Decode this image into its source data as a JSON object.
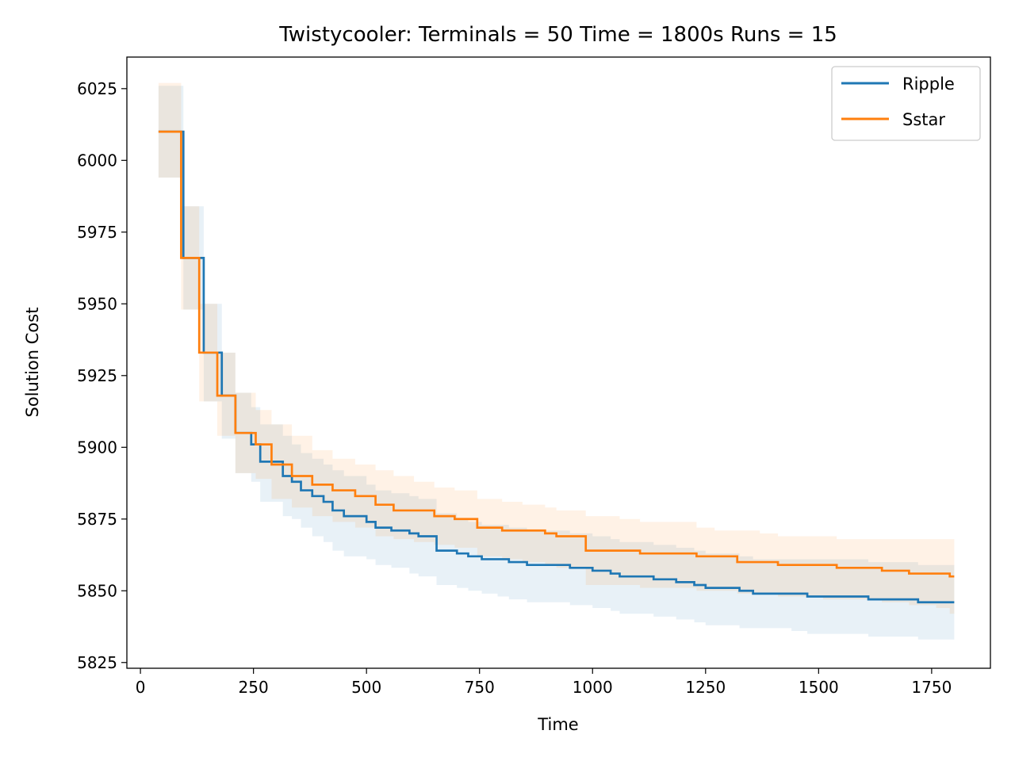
{
  "chart_data": {
    "type": "line",
    "title": "Twistycooler:  Terminals = 50  Time = 1800s  Runs = 15",
    "xlabel": "Time",
    "ylabel": "Solution Cost",
    "xlim": [
      -30,
      1880
    ],
    "ylim": [
      5823,
      6036
    ],
    "xticks": [
      0,
      250,
      500,
      750,
      1000,
      1250,
      1500,
      1750
    ],
    "yticks": [
      5825,
      5850,
      5875,
      5900,
      5925,
      5950,
      5975,
      6000,
      6025
    ],
    "legend_position": "top-right",
    "grid": false,
    "series": [
      {
        "name": "Ripple",
        "color": "#1f77b4",
        "step": "post",
        "shaded_band": true,
        "x": [
          40,
          85,
          95,
          120,
          140,
          150,
          180,
          185,
          210,
          230,
          245,
          265,
          290,
          315,
          335,
          355,
          380,
          405,
          425,
          450,
          475,
          500,
          520,
          555,
          595,
          615,
          635,
          655,
          675,
          700,
          725,
          755,
          790,
          815,
          855,
          910,
          950,
          1000,
          1040,
          1060,
          1105,
          1135,
          1165,
          1185,
          1225,
          1250,
          1295,
          1325,
          1355,
          1390,
          1440,
          1475,
          1520,
          1570,
          1610,
          1660,
          1690,
          1720,
          1760,
          1800
        ],
        "y": [
          6010,
          6010,
          5966,
          5966,
          5933,
          5933,
          5918,
          5918,
          5905,
          5905,
          5901,
          5895,
          5895,
          5890,
          5888,
          5885,
          5883,
          5881,
          5878,
          5876,
          5876,
          5874,
          5872,
          5871,
          5870,
          5869,
          5869,
          5864,
          5864,
          5863,
          5862,
          5861,
          5861,
          5860,
          5859,
          5859,
          5858,
          5857,
          5856,
          5855,
          5855,
          5854,
          5854,
          5853,
          5852,
          5851,
          5851,
          5850,
          5849,
          5849,
          5849,
          5848,
          5848,
          5848,
          5847,
          5847,
          5847,
          5846,
          5846,
          5846
        ],
        "band_lower": [
          5994,
          5994,
          5948,
          5948,
          5916,
          5916,
          5903,
          5903,
          5891,
          5891,
          5888,
          5881,
          5881,
          5876,
          5875,
          5872,
          5869,
          5867,
          5864,
          5862,
          5862,
          5861,
          5859,
          5858,
          5856,
          5855,
          5855,
          5852,
          5852,
          5851,
          5850,
          5849,
          5848,
          5847,
          5846,
          5846,
          5845,
          5844,
          5843,
          5842,
          5842,
          5841,
          5841,
          5840,
          5839,
          5838,
          5838,
          5837,
          5837,
          5837,
          5836,
          5835,
          5835,
          5835,
          5834,
          5834,
          5834,
          5833,
          5833,
          5833
        ],
        "band_upper": [
          6026,
          6026,
          5984,
          5984,
          5950,
          5950,
          5933,
          5933,
          5919,
          5919,
          5914,
          5908,
          5908,
          5904,
          5901,
          5898,
          5896,
          5894,
          5892,
          5890,
          5890,
          5887,
          5885,
          5884,
          5883,
          5882,
          5882,
          5877,
          5877,
          5875,
          5874,
          5873,
          5873,
          5872,
          5871,
          5871,
          5870,
          5869,
          5868,
          5867,
          5867,
          5866,
          5866,
          5865,
          5864,
          5863,
          5863,
          5862,
          5861,
          5861,
          5861,
          5861,
          5861,
          5861,
          5860,
          5860,
          5860,
          5859,
          5859,
          5859
        ]
      },
      {
        "name": "Sstar",
        "color": "#ff7f0e",
        "step": "post",
        "shaded_band": true,
        "x": [
          40,
          90,
          130,
          170,
          210,
          255,
          290,
          335,
          380,
          425,
          475,
          520,
          560,
          605,
          650,
          675,
          695,
          745,
          770,
          800,
          845,
          895,
          920,
          985,
          1060,
          1105,
          1170,
          1230,
          1270,
          1320,
          1370,
          1410,
          1470,
          1510,
          1540,
          1580,
          1640,
          1700,
          1760,
          1790,
          1800
        ],
        "y": [
          6010,
          5966,
          5933,
          5918,
          5905,
          5901,
          5894,
          5890,
          5887,
          5885,
          5883,
          5880,
          5878,
          5878,
          5876,
          5876,
          5875,
          5872,
          5872,
          5871,
          5871,
          5870,
          5869,
          5864,
          5864,
          5863,
          5863,
          5862,
          5862,
          5860,
          5860,
          5859,
          5859,
          5859,
          5858,
          5858,
          5857,
          5856,
          5856,
          5855,
          5855
        ],
        "band_lower": [
          5994,
          5948,
          5916,
          5904,
          5891,
          5889,
          5882,
          5879,
          5876,
          5874,
          5872,
          5869,
          5868,
          5867,
          5866,
          5866,
          5865,
          5862,
          5862,
          5861,
          5860,
          5859,
          5858,
          5852,
          5852,
          5851,
          5851,
          5850,
          5850,
          5849,
          5849,
          5848,
          5848,
          5847,
          5847,
          5847,
          5846,
          5845,
          5844,
          5842,
          5842
        ],
        "band_upper": [
          6027,
          5984,
          5950,
          5933,
          5919,
          5913,
          5908,
          5904,
          5899,
          5896,
          5894,
          5892,
          5890,
          5888,
          5886,
          5886,
          5885,
          5882,
          5882,
          5881,
          5880,
          5879,
          5878,
          5876,
          5875,
          5874,
          5874,
          5872,
          5871,
          5871,
          5870,
          5869,
          5869,
          5869,
          5868,
          5868,
          5868,
          5868,
          5868,
          5868,
          5868
        ]
      }
    ]
  }
}
